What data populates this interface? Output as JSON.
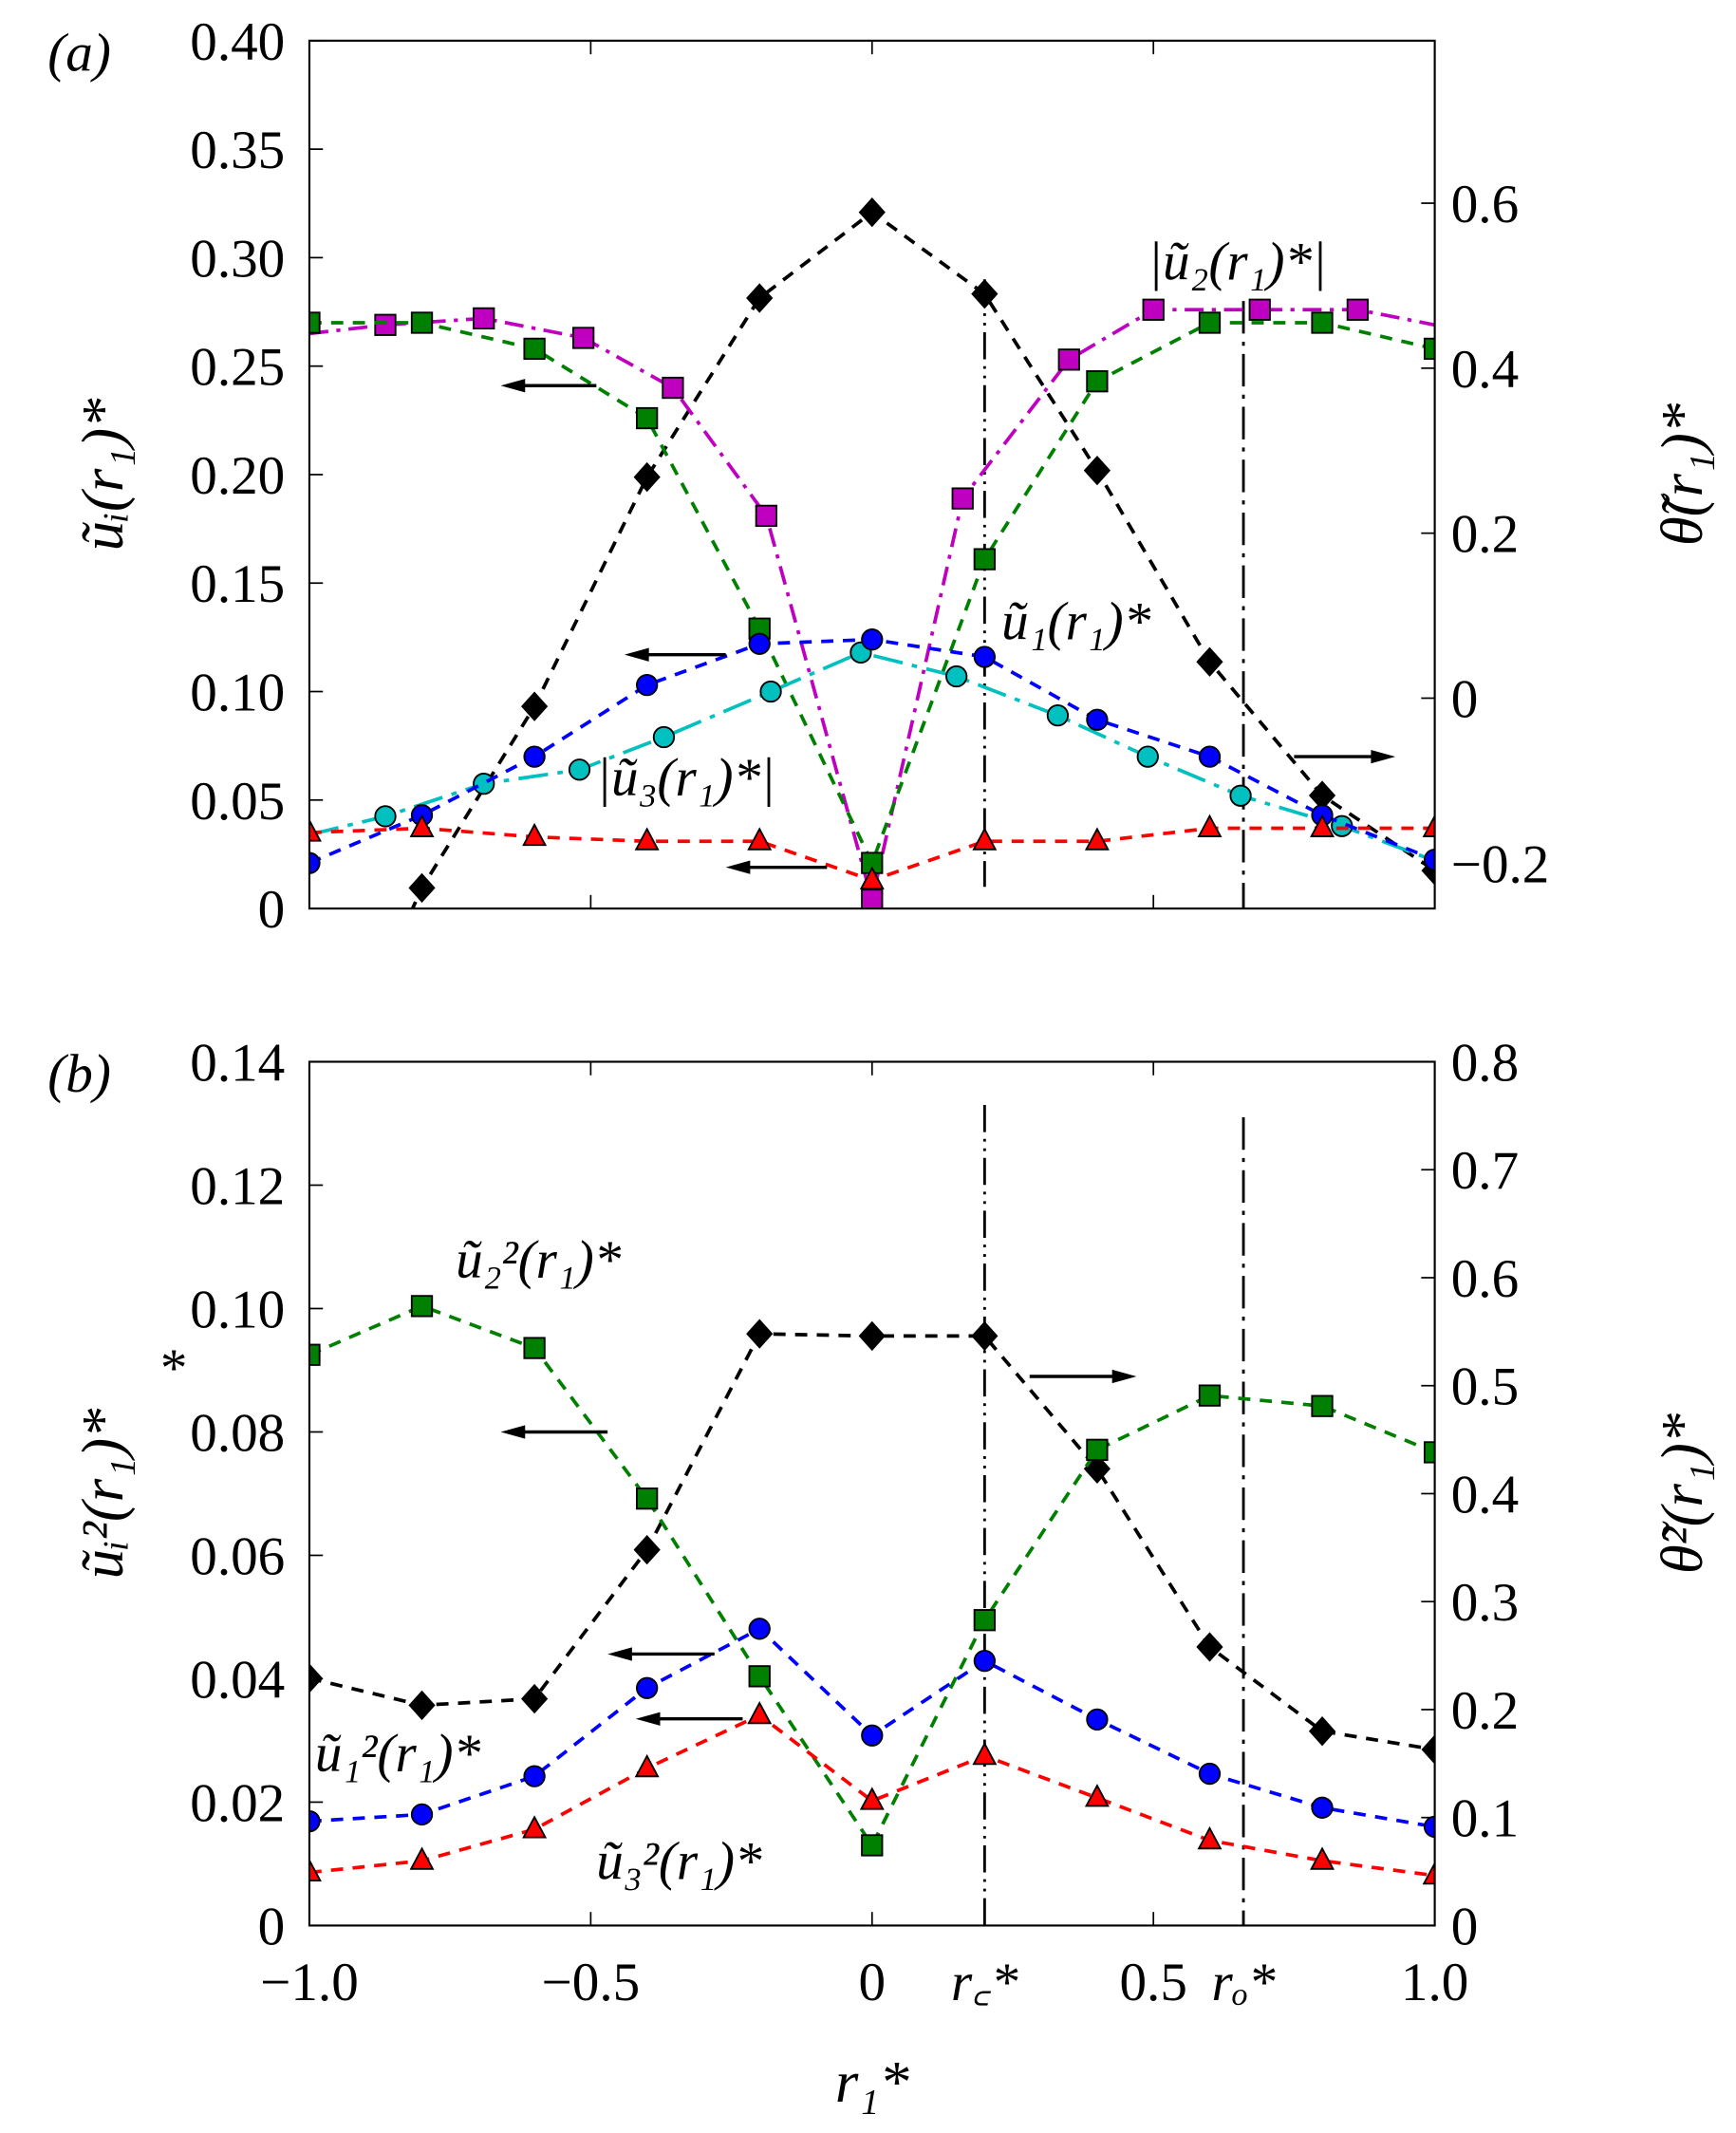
{
  "chart_data": [
    {
      "panel_label": "(a)",
      "type": "line",
      "xlim": [
        -1.0,
        1.0
      ],
      "ylim_left": [
        0,
        0.4
      ],
      "ylim_right": [
        -0.255,
        0.797
      ],
      "ylabel_left": "ũᵢ(r₁)*",
      "ylabel_right": "θ̃(r₁)*",
      "yticks_left": [
        "0",
        "0.05",
        "0.10",
        "0.15",
        "0.20",
        "0.25",
        "0.30",
        "0.35",
        "0.40"
      ],
      "yticks_left_values": [
        0,
        0.05,
        0.1,
        0.15,
        0.2,
        0.25,
        0.3,
        0.35,
        0.4
      ],
      "yticks_right": [
        "−0.2",
        "0",
        "0.2",
        "0.4",
        "0.6"
      ],
      "yticks_right_values": [
        -0.2,
        0,
        0.2,
        0.4,
        0.6
      ],
      "vlines": [
        {
          "x": 0.2,
          "style": "dash-dot-dot",
          "from": 0.29,
          "to": 0.01
        },
        {
          "x": 0.66,
          "style": "dash-dot",
          "from": 0.28,
          "to": 0
        }
      ],
      "annotations": [
        {
          "text": "|ũ₂(r₁)*|",
          "x": 0.49,
          "y": 0.29
        },
        {
          "text": "ũ₁(r₁)*",
          "x": 0.23,
          "y": 0.124
        },
        {
          "text": "|ũ₃(r₁)*|",
          "x": -0.49,
          "y": 0.052
        }
      ],
      "arrows": [
        {
          "dir": "left",
          "x0": -0.49,
          "x1": -0.66,
          "y": 0.241
        },
        {
          "dir": "left",
          "x0": -0.26,
          "x1": -0.44,
          "y": 0.117
        },
        {
          "dir": "left",
          "x0": -0.08,
          "x1": -0.26,
          "y": 0.019
        },
        {
          "dir": "right",
          "x0": 0.75,
          "x1": 0.93,
          "y": 0.07
        }
      ],
      "series": [
        {
          "axis": "right",
          "color": "#000000",
          "marker": "diamond",
          "dash": "dashed",
          "x": [
            -0.8,
            -0.6,
            -0.4,
            -0.2,
            0,
            0.2,
            0.4,
            0.6,
            0.8,
            1.0
          ],
          "y": [
            -0.23,
            -0.01,
            0.268,
            0.485,
            0.589,
            0.49,
            0.276,
            0.044,
            -0.118,
            -0.209
          ],
          "line_x": [
            -0.9,
            -0.8,
            -0.6,
            -0.4,
            -0.2,
            0,
            0.2,
            0.4,
            0.6,
            0.8,
            1.0
          ],
          "line_y": [
            -0.38,
            -0.23,
            -0.01,
            0.268,
            0.485,
            0.589,
            0.49,
            0.276,
            0.044,
            -0.118,
            -0.209
          ]
        },
        {
          "axis": "left",
          "color": "#c000c0",
          "marker": "square",
          "dash": "dashdot",
          "x": [
            -0.865,
            -0.69,
            -0.513,
            -0.354,
            -0.188,
            0,
            0.161,
            0.35,
            0.5,
            0.689,
            0.863
          ],
          "y": [
            0.269,
            0.272,
            0.263,
            0.24,
            0.181,
            0.004,
            0.189,
            0.253,
            0.276,
            0.276,
            0.276
          ],
          "line_x": [
            -1.0,
            -0.865,
            -0.69,
            -0.513,
            -0.354,
            -0.188,
            0,
            0.161,
            0.35,
            0.5,
            0.689,
            0.863,
            1.0
          ],
          "line_y": [
            0.265,
            0.269,
            0.272,
            0.263,
            0.24,
            0.181,
            0.004,
            0.189,
            0.253,
            0.276,
            0.276,
            0.276,
            0.269
          ]
        },
        {
          "axis": "left",
          "color": "#008000",
          "marker": "square",
          "dash": "dashed",
          "x": [
            -1.0,
            -0.8,
            -0.6,
            -0.4,
            -0.2,
            0,
            0.2,
            0.4,
            0.6,
            0.8,
            1.0
          ],
          "y": [
            0.27,
            0.27,
            0.258,
            0.226,
            0.129,
            0.021,
            0.161,
            0.243,
            0.27,
            0.27,
            0.258
          ]
        },
        {
          "axis": "left",
          "color": "#00c0c0",
          "marker": "circle",
          "dash": "longdashdot",
          "x": [
            -0.865,
            -0.69,
            -0.52,
            -0.37,
            -0.18,
            -0.02,
            0.15,
            0.33,
            0.49,
            0.655,
            0.835,
            1.0
          ],
          "y": [
            0.0425,
            0.0575,
            0.064,
            0.079,
            0.1,
            0.118,
            0.107,
            0.089,
            0.07,
            0.052,
            0.038,
            0.022
          ],
          "line_x": [
            -1.0,
            -0.865,
            -0.69,
            -0.52,
            -0.37,
            -0.18,
            -0.02,
            0.15,
            0.33,
            0.49,
            0.655,
            0.835,
            1.0
          ],
          "line_y": [
            0.034,
            0.0425,
            0.0575,
            0.064,
            0.079,
            0.1,
            0.118,
            0.107,
            0.089,
            0.07,
            0.052,
            0.038,
            0.022
          ]
        },
        {
          "axis": "left",
          "color": "#0000ff",
          "marker": "circle",
          "dash": "dashed",
          "x": [
            -1.0,
            -0.8,
            -0.6,
            -0.4,
            -0.2,
            0,
            0.2,
            0.4,
            0.6,
            0.8,
            1.0
          ],
          "y": [
            0.021,
            0.043,
            0.07,
            0.103,
            0.122,
            0.124,
            0.116,
            0.087,
            0.07,
            0.043,
            0.0225
          ]
        },
        {
          "axis": "left",
          "color": "#ff0000",
          "marker": "triangle",
          "dash": "dashed",
          "x": [
            -1.0,
            -0.8,
            -0.6,
            -0.4,
            -0.2,
            0,
            0.2,
            0.4,
            0.6,
            0.8,
            1.0
          ],
          "y": [
            0.035,
            0.037,
            0.033,
            0.031,
            0.031,
            0.013,
            0.031,
            0.031,
            0.037,
            0.037,
            0.037
          ]
        }
      ]
    },
    {
      "panel_label": "(b)",
      "type": "line",
      "xlim": [
        -1.0,
        1.0
      ],
      "ylim_left": [
        0,
        0.14
      ],
      "ylim_right": [
        0,
        0.8
      ],
      "ylabel_left": "ũᵢ²(r₁)*",
      "ylabel_right": "θ̃²(r₁)*",
      "xlabel": "r₁*",
      "xticks": [
        "−1.0",
        "−0.5",
        "0",
        "r꜀*",
        "0.5",
        "rₒ*",
        "1.0"
      ],
      "xticks_values": [
        -1.0,
        -0.5,
        0,
        0.2,
        0.5,
        0.66,
        1.0
      ],
      "yticks_left": [
        "0",
        "0.02",
        "0.04",
        "0.06",
        "0.08",
        "0.10",
        "0.12",
        "0.14"
      ],
      "yticks_left_values": [
        0,
        0.02,
        0.04,
        0.06,
        0.08,
        0.1,
        0.12,
        0.14
      ],
      "yticks_right": [
        "0",
        "0.1",
        "0.2",
        "0.3",
        "0.4",
        "0.5",
        "0.6",
        "0.7",
        "0.8"
      ],
      "yticks_right_values": [
        0,
        0.1,
        0.2,
        0.3,
        0.4,
        0.5,
        0.6,
        0.7,
        0.8
      ],
      "stray_mark": "*",
      "vlines": [
        {
          "x": 0.2,
          "style": "dash-dot-dot",
          "from": 0.133,
          "to": 0
        },
        {
          "x": 0.66,
          "style": "dash-dot",
          "from": 0.131,
          "to": 0
        }
      ],
      "annotations": [
        {
          "text": "ũ₂²(r₁)*",
          "x": -0.74,
          "y": 0.105
        },
        {
          "text": "ũ₁²(r₁)*",
          "x": -0.99,
          "y": 0.025
        },
        {
          "text": "ũ₃²(r₁)*",
          "x": -0.49,
          "y": 0.0075
        }
      ],
      "arrows": [
        {
          "dir": "left",
          "x0": -0.47,
          "x1": -0.66,
          "y": 0.08
        },
        {
          "dir": "left",
          "x0": -0.28,
          "x1": -0.47,
          "y": 0.044
        },
        {
          "dir": "left",
          "x0": -0.23,
          "x1": -0.42,
          "y": 0.0335
        },
        {
          "dir": "right",
          "x0": 0.28,
          "x1": 0.47,
          "y": 0.089
        }
      ],
      "series": [
        {
          "axis": "right",
          "color": "#000000",
          "marker": "diamond",
          "dash": "dashed",
          "x": [
            -1.0,
            -0.8,
            -0.6,
            -0.4,
            -0.2,
            0,
            0.2,
            0.4,
            0.6,
            0.8,
            1.0
          ],
          "y": [
            0.229,
            0.204,
            0.21,
            0.348,
            0.548,
            0.546,
            0.546,
            0.423,
            0.258,
            0.18,
            0.163
          ]
        },
        {
          "axis": "left",
          "color": "#008000",
          "marker": "square",
          "dash": "dashed",
          "x": [
            -1.0,
            -0.8,
            -0.6,
            -0.4,
            -0.2,
            0,
            0.2,
            0.4,
            0.6,
            0.8,
            1.0
          ],
          "y": [
            0.0925,
            0.1004,
            0.0936,
            0.0692,
            0.0404,
            0.013,
            0.0495,
            0.0771,
            0.0859,
            0.0842,
            0.0767
          ]
        },
        {
          "axis": "left",
          "color": "#0000ff",
          "marker": "circle",
          "dash": "dashed",
          "x": [
            -1.0,
            -0.8,
            -0.6,
            -0.4,
            -0.2,
            0,
            0.2,
            0.4,
            0.6,
            0.8,
            1.0
          ],
          "y": [
            0.0169,
            0.018,
            0.0242,
            0.0385,
            0.0481,
            0.0308,
            0.0429,
            0.0334,
            0.0246,
            0.0191,
            0.016
          ]
        },
        {
          "axis": "left",
          "color": "#ff0000",
          "marker": "triangle",
          "dash": "dashed",
          "x": [
            -1.0,
            -0.8,
            -0.6,
            -0.4,
            -0.2,
            0,
            0.2,
            0.4,
            0.6,
            0.8,
            1.0
          ],
          "y": [
            0.0086,
            0.0105,
            0.0156,
            0.0255,
            0.0341,
            0.0202,
            0.0275,
            0.0207,
            0.0138,
            0.0105,
            0.0081
          ]
        }
      ]
    }
  ]
}
